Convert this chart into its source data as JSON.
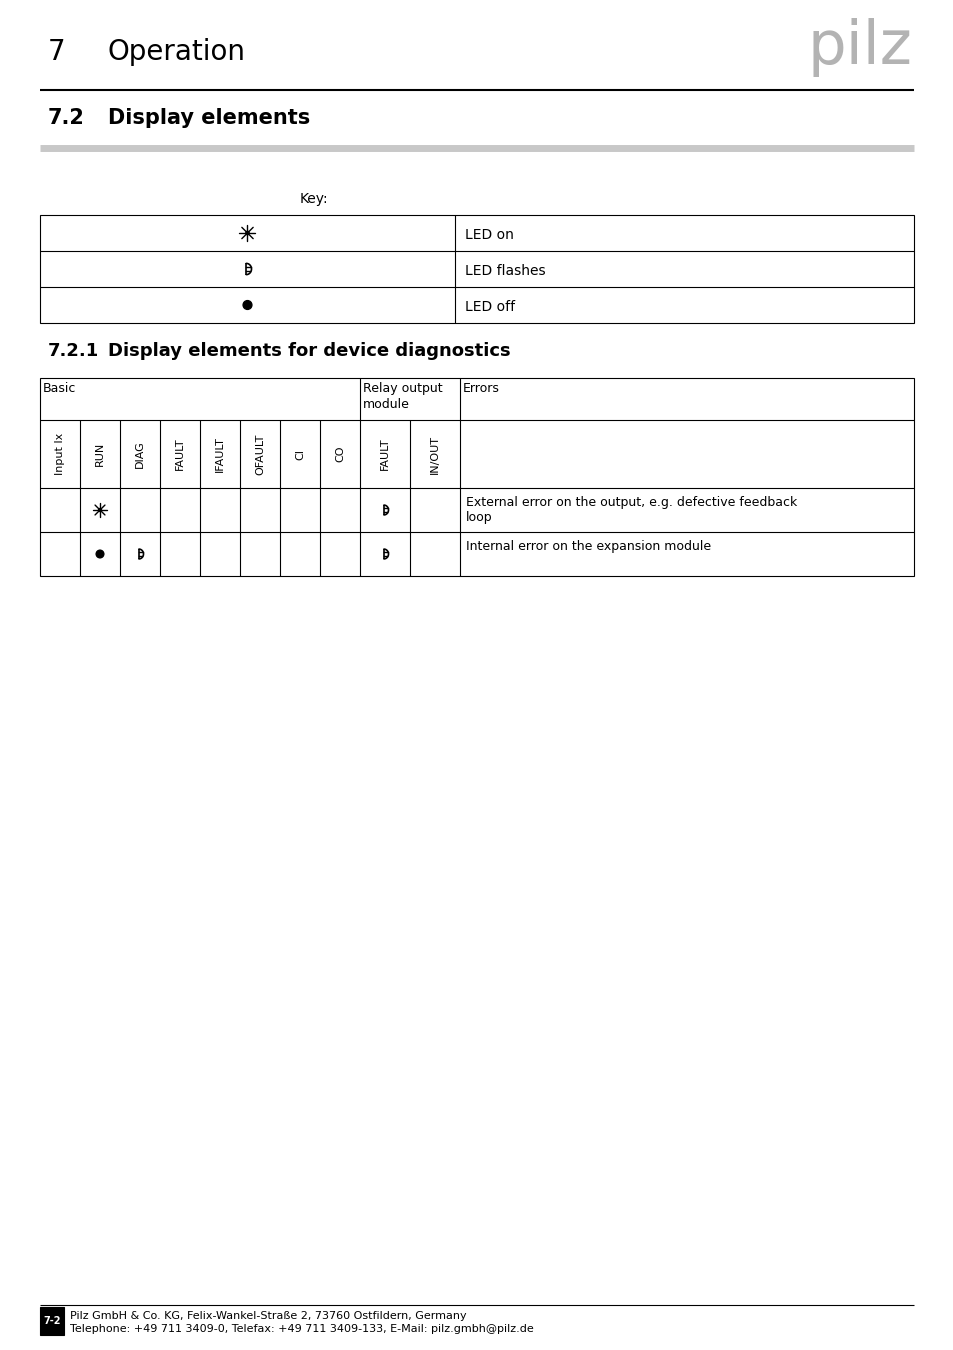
{
  "title_number": "7",
  "title_text": "Operation",
  "section_number": "7.2",
  "section_title": "Display elements",
  "subsection_number": "7.2.1",
  "subsection_title": "Display elements for device diagnostics",
  "key_label": "Key:",
  "key_table": [
    {
      "symbol": "sun",
      "description": "LED on"
    },
    {
      "symbol": "flash",
      "description": "LED flashes"
    },
    {
      "symbol": "dot",
      "description": "LED off"
    }
  ],
  "diag_col_headers": [
    "Input Ix",
    "RUN",
    "DIAG",
    "FAULT",
    "IFAULT",
    "OFAULT",
    "CI",
    "CO",
    "FAULT",
    "IN/OUT"
  ],
  "diag_group_headers": [
    "Basic",
    "Relay output\nmodule",
    "Errors"
  ],
  "diag_rows": [
    {
      "symbols": [
        [
          1,
          "sun"
        ],
        [
          8,
          "flash"
        ]
      ],
      "error": "External error on the output, e.g. defective feedback\nloop"
    },
    {
      "symbols": [
        [
          1,
          "dot"
        ],
        [
          2,
          "flash"
        ],
        [
          8,
          "flash"
        ]
      ],
      "error": "Internal error on the expansion module"
    }
  ],
  "footer_line1": "Pilz GmbH & Co. KG, Felix-Wankel-Straße 2, 73760 Ostfildern, Germany",
  "footer_line2": "Telephone: +49 711 3409-0, Telefax: +49 711 3409-133, E-Mail: pilz.gmbh@pilz.de",
  "page_label": "7-2",
  "bg_color": "#ffffff"
}
